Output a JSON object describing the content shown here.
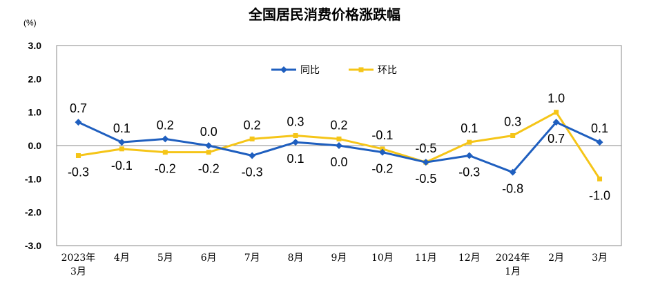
{
  "chart_data": {
    "type": "line",
    "title": "全国居民消费价格涨跌幅",
    "unit_label": "(%)",
    "categories": [
      [
        "2023年",
        "3月"
      ],
      [
        "4月"
      ],
      [
        "5月"
      ],
      [
        "6月"
      ],
      [
        "7月"
      ],
      [
        "8月"
      ],
      [
        "9月"
      ],
      [
        "10月"
      ],
      [
        "11月"
      ],
      [
        "12月"
      ],
      [
        "2024年",
        "1月"
      ],
      [
        "2月"
      ],
      [
        "3月"
      ]
    ],
    "ylim": [
      -3.0,
      3.0
    ],
    "yticks": [
      "3.0",
      "2.0",
      "1.0",
      "0.0",
      "-1.0",
      "-2.0",
      "-3.0"
    ],
    "ytick_values": [
      3,
      2,
      1,
      0,
      -1,
      -2,
      -3
    ],
    "legend_position": "top-center",
    "series": [
      {
        "name": "同比",
        "color": "#1f5fbf",
        "marker": "diamond",
        "values": [
          0.7,
          0.1,
          0.2,
          0.0,
          -0.3,
          0.1,
          0.0,
          -0.2,
          -0.5,
          -0.3,
          -0.8,
          0.7,
          0.1
        ],
        "labels": [
          "0.7",
          "0.1",
          "0.2",
          "0.0",
          "-0.3",
          "0.1",
          "0.0",
          "-0.2",
          "-0.5",
          "-0.3",
          "-0.8",
          "0.7",
          "0.1"
        ],
        "label_positions": [
          "above",
          "above",
          "above",
          "above",
          "below",
          "below",
          "below",
          "below",
          "below",
          "below",
          "below",
          "below",
          "above"
        ]
      },
      {
        "name": "环比",
        "color": "#f5c518",
        "marker": "square",
        "values": [
          -0.3,
          -0.1,
          -0.2,
          -0.2,
          0.2,
          0.3,
          0.2,
          -0.1,
          -0.5,
          0.1,
          0.3,
          1.0,
          -1.0
        ],
        "labels": [
          "-0.3",
          "-0.1",
          "-0.2",
          "-0.2",
          "0.2",
          "0.3",
          "0.2",
          "-0.1",
          "-0.5",
          "0.1",
          "0.3",
          "1.0",
          "-1.0"
        ],
        "label_positions": [
          "below",
          "below",
          "below",
          "below",
          "above",
          "above",
          "above",
          "above",
          "above",
          "above",
          "above",
          "above",
          "below"
        ]
      }
    ]
  }
}
